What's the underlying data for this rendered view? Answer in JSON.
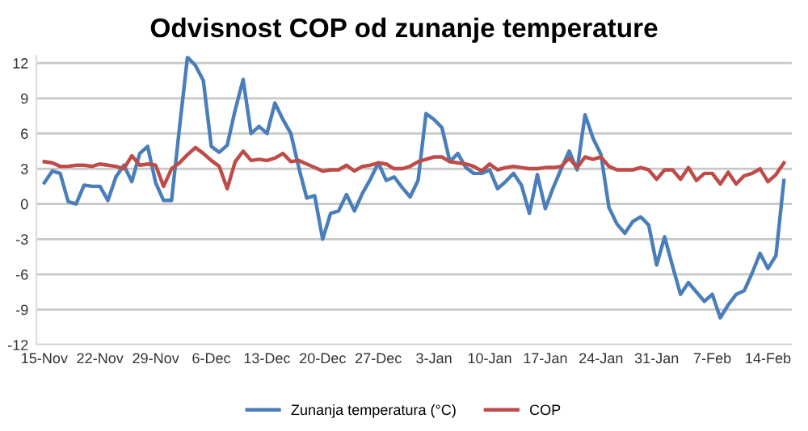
{
  "chart_data": {
    "type": "line",
    "title": "Odvisnost COP od zunanje temperature",
    "categories": [
      "15-Nov",
      null,
      null,
      null,
      null,
      null,
      null,
      "22-Nov",
      null,
      null,
      null,
      null,
      null,
      null,
      "29-Nov",
      null,
      null,
      null,
      null,
      null,
      null,
      "6-Dec",
      null,
      null,
      null,
      null,
      null,
      null,
      "13-Dec",
      null,
      null,
      null,
      null,
      null,
      null,
      "20-Dec",
      null,
      null,
      null,
      null,
      null,
      null,
      "27-Dec",
      null,
      null,
      null,
      null,
      null,
      null,
      "3-Jan",
      null,
      null,
      null,
      null,
      null,
      null,
      "10-Jan",
      null,
      null,
      null,
      null,
      null,
      null,
      "17-Jan",
      null,
      null,
      null,
      null,
      null,
      null,
      "24-Jan",
      null,
      null,
      null,
      null,
      null,
      null,
      "31-Jan",
      null,
      null,
      null,
      null,
      null,
      null,
      "7-Feb",
      null,
      null,
      null,
      null,
      null,
      null,
      "14-Feb",
      null,
      null
    ],
    "series": [
      {
        "name": "Zunanja temperatura (°C)",
        "color": "#4a7ebb",
        "values": [
          1.8,
          2.8,
          2.6,
          0.2,
          0.0,
          1.6,
          1.5,
          1.5,
          0.3,
          2.3,
          3.3,
          1.9,
          4.3,
          4.9,
          1.8,
          0.3,
          0.3,
          6.5,
          12.5,
          11.8,
          10.5,
          4.9,
          4.4,
          5.0,
          8.0,
          10.6,
          6.0,
          6.6,
          6.0,
          8.6,
          7.2,
          6.0,
          3.1,
          0.5,
          0.7,
          -3.0,
          -0.8,
          -0.6,
          0.8,
          -0.6,
          0.9,
          2.1,
          3.5,
          2.0,
          2.3,
          1.4,
          0.6,
          2.0,
          7.7,
          7.2,
          6.5,
          3.6,
          4.3,
          3.1,
          2.6,
          2.6,
          2.9,
          1.3,
          1.9,
          2.6,
          1.6,
          -0.8,
          2.5,
          -0.4,
          1.4,
          3.0,
          4.5,
          2.9,
          7.6,
          5.6,
          4.2,
          -0.3,
          -1.7,
          -2.5,
          -1.5,
          -1.1,
          -1.8,
          -5.2,
          -2.8,
          -5.3,
          -7.7,
          -6.7,
          -7.5,
          -8.3,
          -7.7,
          -9.7,
          -8.6,
          -7.7,
          -7.4,
          -5.9,
          -4.2,
          -5.5,
          -4.4,
          2.0
        ]
      },
      {
        "name": "COP",
        "color": "#be4b48",
        "values": [
          3.6,
          3.5,
          3.2,
          3.2,
          3.3,
          3.3,
          3.2,
          3.4,
          3.3,
          3.2,
          3.0,
          4.1,
          3.3,
          3.4,
          3.3,
          1.5,
          3.0,
          3.5,
          4.2,
          4.8,
          4.3,
          3.7,
          3.2,
          1.3,
          3.6,
          4.5,
          3.7,
          3.8,
          3.7,
          3.9,
          4.3,
          3.6,
          3.7,
          3.4,
          3.1,
          2.8,
          2.9,
          2.9,
          3.3,
          2.8,
          3.2,
          3.3,
          3.5,
          3.4,
          3.0,
          3.0,
          3.2,
          3.6,
          3.8,
          4.0,
          4.0,
          3.6,
          3.5,
          3.4,
          3.2,
          2.8,
          3.4,
          2.9,
          3.1,
          3.2,
          3.1,
          3.0,
          3.0,
          3.1,
          3.1,
          3.2,
          3.9,
          3.1,
          4.0,
          3.8,
          4.0,
          3.2,
          2.9,
          2.9,
          2.9,
          3.1,
          2.9,
          2.1,
          2.9,
          2.9,
          2.1,
          3.1,
          2.0,
          2.6,
          2.6,
          1.7,
          2.7,
          1.7,
          2.4,
          2.6,
          3.0,
          1.9,
          2.5,
          3.5
        ]
      }
    ],
    "ylim": [
      -12,
      12.6
    ],
    "yticks": [
      -12,
      -9,
      -6,
      -3,
      0,
      3,
      6,
      9,
      12
    ],
    "grid": "y",
    "legend": "bottom"
  }
}
